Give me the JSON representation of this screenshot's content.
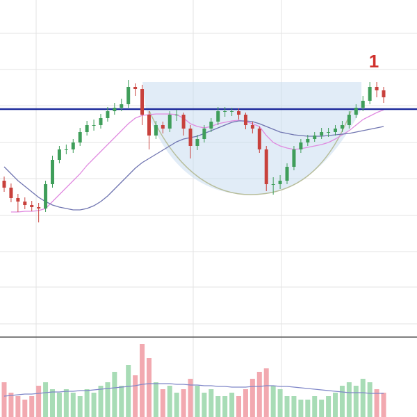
{
  "chart_data": [
    {
      "type": "candlestick",
      "up_color": "#3f9e5a",
      "down_color": "#c8413c",
      "ylim": [
        15,
        500
      ],
      "yticks": [
        34,
        87,
        138,
        190,
        243,
        295,
        348,
        400,
        452
      ],
      "grid": true,
      "open": [
        240,
        230,
        215,
        210,
        205,
        202,
        200,
        235,
        270,
        285,
        285,
        295,
        310,
        320,
        320,
        330,
        340,
        345,
        350,
        375,
        372,
        335,
        305,
        320,
        315,
        335,
        335,
        315,
        290,
        300,
        315,
        325,
        340,
        340,
        340,
        335,
        320,
        315,
        285,
        235,
        235,
        240,
        260,
        285,
        295,
        300,
        305,
        310,
        310,
        315,
        320,
        335,
        345,
        355,
        375,
        370
      ],
      "high": [
        246,
        236,
        221,
        216,
        211,
        208,
        240,
        276,
        290,
        292,
        300,
        316,
        326,
        328,
        336,
        346,
        352,
        358,
        385,
        380,
        378,
        340,
        326,
        325,
        340,
        342,
        338,
        320,
        306,
        320,
        330,
        346,
        346,
        345,
        344,
        338,
        325,
        318,
        290,
        245,
        248,
        265,
        290,
        300,
        306,
        310,
        316,
        316,
        320,
        326,
        340,
        350,
        362,
        382,
        382,
        375
      ],
      "low": [
        224,
        209,
        195,
        199,
        196,
        180,
        195,
        230,
        265,
        278,
        280,
        290,
        305,
        312,
        315,
        325,
        335,
        340,
        345,
        362,
        320,
        285,
        300,
        308,
        310,
        326,
        305,
        272,
        284,
        295,
        310,
        320,
        332,
        333,
        328,
        314,
        308,
        280,
        225,
        220,
        228,
        235,
        255,
        280,
        290,
        296,
        300,
        303,
        305,
        310,
        315,
        330,
        340,
        350,
        360,
        352
      ],
      "close": [
        230,
        215,
        210,
        205,
        202,
        200,
        235,
        270,
        285,
        285,
        295,
        310,
        320,
        320,
        330,
        340,
        345,
        350,
        375,
        372,
        335,
        305,
        320,
        315,
        335,
        335,
        315,
        290,
        300,
        315,
        325,
        340,
        340,
        340,
        335,
        320,
        315,
        285,
        235,
        235,
        240,
        260,
        285,
        295,
        300,
        305,
        310,
        310,
        315,
        320,
        335,
        345,
        355,
        375,
        370,
        360
      ],
      "series": [
        {
          "color": "#e08ae0",
          "values": [
            null,
            195,
            195,
            196,
            196,
            197,
            200,
            210,
            220,
            230,
            240,
            250,
            262,
            272,
            282,
            292,
            302,
            312,
            322,
            330,
            334,
            335,
            336,
            336,
            336,
            335,
            330,
            322,
            318,
            316,
            318,
            322,
            324,
            326,
            327,
            325,
            322,
            318,
            305,
            295,
            290,
            287,
            285,
            286,
            288,
            290,
            292,
            295,
            300,
            306,
            312,
            320,
            328,
            333,
            338,
            342
          ]
        },
        {
          "color": "#6f74b0",
          "values": [
            260,
            250,
            240,
            232,
            224,
            216,
            210,
            205,
            202,
            200,
            198,
            198,
            200,
            204,
            210,
            218,
            228,
            238,
            248,
            258,
            266,
            272,
            278,
            284,
            290,
            296,
            300,
            302,
            304,
            308,
            312,
            316,
            320,
            324,
            326,
            326,
            325,
            322,
            318,
            314,
            310,
            308,
            306,
            305,
            304,
            304,
            304,
            305,
            306,
            307,
            308,
            310,
            312,
            314,
            316,
            318
          ]
        }
      ],
      "resistance_line": 343,
      "resistance_color": "#1f2c9c",
      "annotation": "1",
      "annotation_color": "#d0312d"
    },
    {
      "type": "bar",
      "ylim": [
        0,
        113
      ],
      "values": [
        50,
        35,
        30,
        25,
        30,
        45,
        50,
        40,
        35,
        40,
        35,
        30,
        40,
        35,
        45,
        50,
        65,
        45,
        75,
        60,
        105,
        85,
        50,
        40,
        45,
        35,
        40,
        55,
        45,
        35,
        40,
        30,
        30,
        35,
        30,
        40,
        55,
        65,
        70,
        45,
        40,
        30,
        30,
        25,
        25,
        30,
        25,
        30,
        35,
        45,
        50,
        45,
        55,
        50,
        40,
        35
      ],
      "up_color": "#a8dcb6",
      "down_color": "#f2a9b0",
      "series": [
        {
          "color": "#7f86c8",
          "values": [
            30,
            31,
            32,
            33,
            33,
            34,
            35,
            36,
            36,
            37,
            37,
            38,
            38,
            39,
            40,
            41,
            42,
            43,
            44,
            45,
            47,
            48,
            48,
            48,
            48,
            47,
            47,
            46,
            46,
            45,
            45,
            44,
            44,
            43,
            43,
            43,
            44,
            44,
            45,
            45,
            44,
            44,
            43,
            42,
            41,
            40,
            39,
            38,
            37,
            36,
            35,
            35,
            35,
            34,
            34,
            34
          ]
        }
      ]
    }
  ]
}
